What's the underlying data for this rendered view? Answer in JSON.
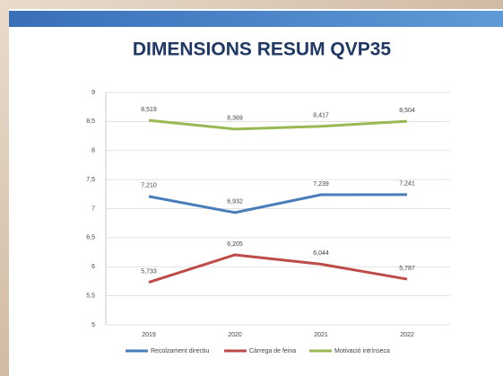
{
  "chart_data": {
    "type": "line",
    "title": "DIMENSIONS RESUM QVP35",
    "categories": [
      "2019",
      "2020",
      "2021",
      "2022"
    ],
    "series": [
      {
        "name": "Recolzament directiu",
        "color": "#4a7ebb",
        "values": [
          7.21,
          6.932,
          7.239,
          7.241
        ],
        "value_labels": [
          "7,210",
          "6,932",
          "7,239",
          "7,241"
        ]
      },
      {
        "name": "Càrrega de feina",
        "color": "#be4b48",
        "values": [
          5.733,
          6.205,
          6.044,
          5.787
        ],
        "value_labels": [
          "5,733",
          "6,205",
          "6,044",
          "5,787"
        ]
      },
      {
        "name": "Motivació intrínseca",
        "color": "#98b954",
        "values": [
          8.519,
          8.369,
          8.417,
          8.504
        ],
        "value_labels": [
          "8,519",
          "8,369",
          "8,417",
          "8,504"
        ]
      }
    ],
    "ylim": [
      5,
      9
    ],
    "yticks": [
      5,
      {
        "value": 5.5,
        "label": "5,5"
      },
      6,
      {
        "value": 6.5,
        "label": "6,5"
      },
      7,
      {
        "value": 7.5,
        "label": "7,5"
      },
      8,
      {
        "value": 8.5,
        "label": "8,5"
      },
      9
    ],
    "grid": true,
    "legend": "bottom"
  }
}
